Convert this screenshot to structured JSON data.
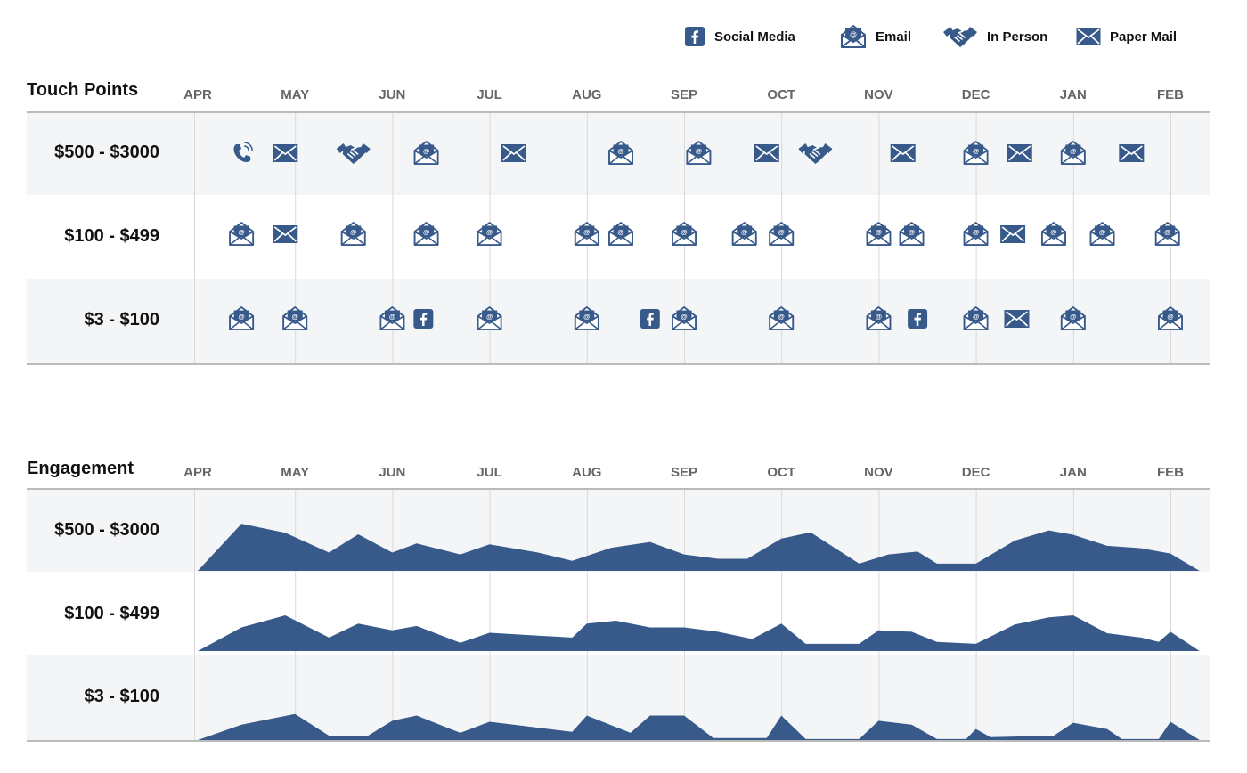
{
  "legend": [
    {
      "label": "Social Media",
      "icon": "social-media-icon"
    },
    {
      "label": "Email",
      "icon": "email-icon"
    },
    {
      "label": "In Person",
      "icon": "handshake-icon"
    },
    {
      "label": "Paper Mail",
      "icon": "paper-mail-icon"
    }
  ],
  "colors": {
    "accent": "#375a8a",
    "band": "#f4f5f7",
    "axis": "#bbbbbb",
    "grid": "#d9d9d9"
  },
  "chart_data": [
    {
      "type": "table",
      "title": "Touch Points",
      "months": [
        "APR",
        "MAY",
        "JUN",
        "JUL",
        "AUG",
        "SEP",
        "OCT",
        "NOV",
        "DEC",
        "JAN",
        "FEB"
      ],
      "rows": [
        {
          "label": "$500 - $3000",
          "events": [
            {
              "t": 0.45,
              "type": "phone"
            },
            {
              "t": 0.9,
              "type": "paper"
            },
            {
              "t": 1.6,
              "type": "inperson"
            },
            {
              "t": 2.35,
              "type": "email"
            },
            {
              "t": 3.25,
              "type": "paper"
            },
            {
              "t": 4.35,
              "type": "email"
            },
            {
              "t": 5.15,
              "type": "email"
            },
            {
              "t": 5.85,
              "type": "paper"
            },
            {
              "t": 6.35,
              "type": "inperson"
            },
            {
              "t": 7.25,
              "type": "paper"
            },
            {
              "t": 8.0,
              "type": "email"
            },
            {
              "t": 8.45,
              "type": "paper"
            },
            {
              "t": 9.0,
              "type": "email"
            },
            {
              "t": 9.6,
              "type": "paper"
            }
          ]
        },
        {
          "label": "$100 - $499",
          "events": [
            {
              "t": 0.45,
              "type": "email"
            },
            {
              "t": 0.9,
              "type": "paper"
            },
            {
              "t": 1.6,
              "type": "email"
            },
            {
              "t": 2.35,
              "type": "email"
            },
            {
              "t": 3.0,
              "type": "email"
            },
            {
              "t": 4.0,
              "type": "email"
            },
            {
              "t": 4.35,
              "type": "email"
            },
            {
              "t": 5.0,
              "type": "email"
            },
            {
              "t": 5.62,
              "type": "email"
            },
            {
              "t": 6.0,
              "type": "email"
            },
            {
              "t": 7.0,
              "type": "email"
            },
            {
              "t": 7.34,
              "type": "email"
            },
            {
              "t": 8.0,
              "type": "email"
            },
            {
              "t": 8.38,
              "type": "paper"
            },
            {
              "t": 8.8,
              "type": "email"
            },
            {
              "t": 9.3,
              "type": "email"
            },
            {
              "t": 9.97,
              "type": "email"
            }
          ]
        },
        {
          "label": "$3 - $100",
          "events": [
            {
              "t": 0.45,
              "type": "email"
            },
            {
              "t": 1.0,
              "type": "email"
            },
            {
              "t": 2.0,
              "type": "email"
            },
            {
              "t": 2.32,
              "type": "social"
            },
            {
              "t": 3.0,
              "type": "email"
            },
            {
              "t": 4.0,
              "type": "email"
            },
            {
              "t": 4.65,
              "type": "social"
            },
            {
              "t": 5.0,
              "type": "email"
            },
            {
              "t": 6.0,
              "type": "email"
            },
            {
              "t": 7.0,
              "type": "email"
            },
            {
              "t": 7.4,
              "type": "social"
            },
            {
              "t": 8.0,
              "type": "email"
            },
            {
              "t": 8.42,
              "type": "paper"
            },
            {
              "t": 9.0,
              "type": "email"
            },
            {
              "t": 10.0,
              "type": "email"
            }
          ]
        }
      ]
    },
    {
      "type": "area",
      "title": "Engagement",
      "months": [
        "APR",
        "MAY",
        "JUN",
        "JUL",
        "AUG",
        "SEP",
        "OCT",
        "NOV",
        "DEC",
        "JAN",
        "FEB"
      ],
      "ylim": [
        0,
        100
      ],
      "series": [
        {
          "name": "$500 - $3000",
          "points": [
            [
              0,
              0
            ],
            [
              0.45,
              98
            ],
            [
              0.9,
              79
            ],
            [
              1.35,
              38
            ],
            [
              1.65,
              76
            ],
            [
              2.0,
              38
            ],
            [
              2.25,
              57
            ],
            [
              2.7,
              34
            ],
            [
              3.0,
              55
            ],
            [
              3.5,
              38
            ],
            [
              3.85,
              21
            ],
            [
              4.25,
              48
            ],
            [
              4.65,
              60
            ],
            [
              5.0,
              34
            ],
            [
              5.35,
              25
            ],
            [
              5.65,
              25
            ],
            [
              6.0,
              67
            ],
            [
              6.3,
              80
            ],
            [
              6.8,
              15
            ],
            [
              7.1,
              34
            ],
            [
              7.4,
              40
            ],
            [
              7.6,
              15
            ],
            [
              8.0,
              15
            ],
            [
              8.4,
              63
            ],
            [
              8.75,
              84
            ],
            [
              9.0,
              75
            ],
            [
              9.35,
              52
            ],
            [
              9.7,
              47
            ],
            [
              10.0,
              36
            ],
            [
              10.3,
              0
            ]
          ]
        },
        {
          "name": "$100 - $499",
          "points": [
            [
              0,
              0
            ],
            [
              0.45,
              49
            ],
            [
              0.9,
              74
            ],
            [
              1.35,
              28
            ],
            [
              1.65,
              57
            ],
            [
              2.0,
              43
            ],
            [
              2.25,
              52
            ],
            [
              2.7,
              17
            ],
            [
              3.0,
              38
            ],
            [
              3.5,
              32
            ],
            [
              3.85,
              28
            ],
            [
              4.0,
              57
            ],
            [
              4.3,
              63
            ],
            [
              4.65,
              49
            ],
            [
              5.0,
              49
            ],
            [
              5.35,
              40
            ],
            [
              5.7,
              25
            ],
            [
              6.0,
              57
            ],
            [
              6.25,
              15
            ],
            [
              6.8,
              15
            ],
            [
              7.0,
              43
            ],
            [
              7.34,
              40
            ],
            [
              7.6,
              19
            ],
            [
              8.0,
              15
            ],
            [
              8.4,
              55
            ],
            [
              8.75,
              70
            ],
            [
              9.0,
              74
            ],
            [
              9.35,
              37
            ],
            [
              9.7,
              28
            ],
            [
              9.88,
              19
            ],
            [
              10.0,
              40
            ],
            [
              10.3,
              0
            ]
          ]
        },
        {
          "name": "$3 - $100",
          "points": [
            [
              0,
              0
            ],
            [
              0.45,
              32
            ],
            [
              1.0,
              54
            ],
            [
              1.35,
              9
            ],
            [
              1.75,
              9
            ],
            [
              2.0,
              40
            ],
            [
              2.25,
              51
            ],
            [
              2.7,
              15
            ],
            [
              3.0,
              38
            ],
            [
              3.85,
              17
            ],
            [
              4.0,
              51
            ],
            [
              4.45,
              15
            ],
            [
              4.65,
              51
            ],
            [
              5.0,
              51
            ],
            [
              5.3,
              4
            ],
            [
              5.85,
              4
            ],
            [
              6.0,
              51
            ],
            [
              6.25,
              2
            ],
            [
              6.8,
              2
            ],
            [
              7.0,
              40
            ],
            [
              7.34,
              32
            ],
            [
              7.6,
              2
            ],
            [
              7.9,
              2
            ],
            [
              8.0,
              23
            ],
            [
              8.15,
              6
            ],
            [
              8.8,
              9
            ],
            [
              9.0,
              36
            ],
            [
              9.35,
              23
            ],
            [
              9.5,
              2
            ],
            [
              9.88,
              2
            ],
            [
              10.0,
              38
            ],
            [
              10.3,
              0
            ]
          ]
        }
      ]
    }
  ]
}
